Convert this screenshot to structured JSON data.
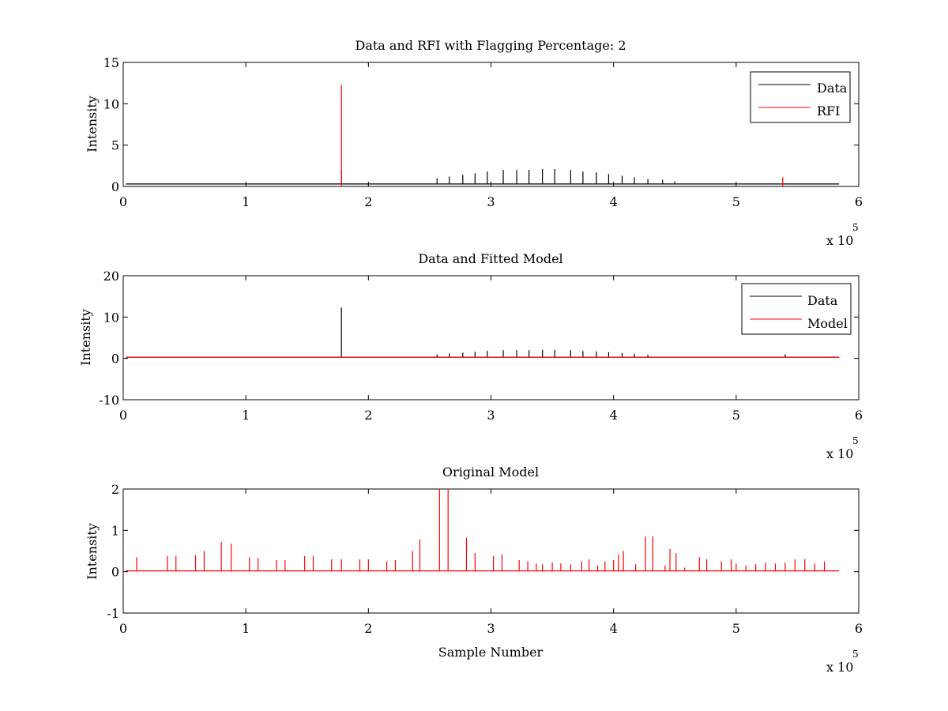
{
  "figure": {
    "background": "#ffffff",
    "axis_color": "#000000"
  },
  "chart_data": [
    {
      "type": "line",
      "title": "Data and RFI with Flagging Percentage: 2",
      "xlabel": "",
      "ylabel": "Intensity",
      "xlim": [
        0,
        600000
      ],
      "ylim": [
        0,
        15
      ],
      "xticks": [
        0,
        100000,
        200000,
        300000,
        400000,
        500000,
        600000
      ],
      "xtick_labels": [
        "0",
        "1",
        "2",
        "3",
        "4",
        "5",
        "6"
      ],
      "yticks": [
        0,
        5,
        10,
        15
      ],
      "ytick_labels": [
        "0",
        "5",
        "10",
        "15"
      ],
      "x_multiplier_label": "x 10",
      "x_multiplier_exponent": "5",
      "legend": {
        "position": "top-right",
        "entries": [
          "Data",
          "RFI"
        ]
      },
      "series": [
        {
          "name": "Data",
          "color": "#000000",
          "baseline": 0.3,
          "spikes": [
            [
              178000,
              2.0
            ],
            [
              256000,
              1.0
            ],
            [
              266000,
              1.2
            ],
            [
              277000,
              1.4
            ],
            [
              287000,
              1.6
            ],
            [
              297000,
              1.8
            ],
            [
              310000,
              2.0
            ],
            [
              321000,
              2.0
            ],
            [
              331000,
              2.0
            ],
            [
              342000,
              2.1
            ],
            [
              352000,
              2.1
            ],
            [
              365000,
              2.0
            ],
            [
              375000,
              1.8
            ],
            [
              386000,
              1.7
            ],
            [
              396000,
              1.5
            ],
            [
              407000,
              1.3
            ],
            [
              417000,
              1.1
            ],
            [
              428000,
              0.9
            ],
            [
              440000,
              0.8
            ],
            [
              450000,
              0.6
            ]
          ]
        },
        {
          "name": "RFI",
          "color": "#ff0000",
          "baseline": null,
          "spikes": [
            [
              178000,
              12.3
            ],
            [
              538000,
              1.1
            ]
          ]
        }
      ]
    },
    {
      "type": "line",
      "title": "Data and Fitted Model",
      "xlabel": "",
      "ylabel": "Intensity",
      "xlim": [
        0,
        600000
      ],
      "ylim": [
        -10,
        20
      ],
      "xticks": [
        0,
        100000,
        200000,
        300000,
        400000,
        500000,
        600000
      ],
      "xtick_labels": [
        "0",
        "1",
        "2",
        "3",
        "4",
        "5",
        "6"
      ],
      "yticks": [
        -10,
        0,
        10,
        20
      ],
      "ytick_labels": [
        "-10",
        "0",
        "10",
        "20"
      ],
      "x_multiplier_label": "x 10",
      "x_multiplier_exponent": "5",
      "legend": {
        "position": "top-right",
        "entries": [
          "Data",
          "Model"
        ]
      },
      "series": [
        {
          "name": "Data",
          "color": "#000000",
          "baseline": 0.3,
          "spikes": [
            [
              178000,
              12.3
            ],
            [
              256000,
              1.0
            ],
            [
              266000,
              1.2
            ],
            [
              277000,
              1.4
            ],
            [
              287000,
              1.6
            ],
            [
              297000,
              1.8
            ],
            [
              310000,
              2.0
            ],
            [
              321000,
              2.0
            ],
            [
              331000,
              2.0
            ],
            [
              342000,
              2.1
            ],
            [
              352000,
              2.1
            ],
            [
              365000,
              2.0
            ],
            [
              375000,
              1.8
            ],
            [
              386000,
              1.7
            ],
            [
              396000,
              1.5
            ],
            [
              407000,
              1.3
            ],
            [
              417000,
              1.1
            ],
            [
              428000,
              0.9
            ],
            [
              540000,
              1.0
            ]
          ]
        },
        {
          "name": "Model",
          "color": "#ff0000",
          "baseline": 0.3,
          "spikes": []
        }
      ]
    },
    {
      "type": "line",
      "title": "Original Model",
      "xlabel": "Sample Number",
      "ylabel": "Intensity",
      "xlim": [
        0,
        600000
      ],
      "ylim": [
        -1,
        2
      ],
      "xticks": [
        0,
        100000,
        200000,
        300000,
        400000,
        500000,
        600000
      ],
      "xtick_labels": [
        "0",
        "1",
        "2",
        "3",
        "4",
        "5",
        "6"
      ],
      "yticks": [
        -1,
        0,
        1,
        2
      ],
      "ytick_labels": [
        "-1",
        "0",
        "1",
        "2"
      ],
      "x_multiplier_label": "x 10",
      "x_multiplier_exponent": "5",
      "legend": null,
      "series": [
        {
          "name": "",
          "color": "#ff0000",
          "baseline": 0.02,
          "spikes": [
            [
              11000,
              0.35
            ],
            [
              36000,
              0.38
            ],
            [
              43000,
              0.38
            ],
            [
              59000,
              0.4
            ],
            [
              66000,
              0.5
            ],
            [
              80000,
              0.72
            ],
            [
              88000,
              0.68
            ],
            [
              103000,
              0.35
            ],
            [
              110000,
              0.33
            ],
            [
              125000,
              0.28
            ],
            [
              132000,
              0.28
            ],
            [
              148000,
              0.38
            ],
            [
              155000,
              0.38
            ],
            [
              170000,
              0.3
            ],
            [
              178000,
              0.3
            ],
            [
              193000,
              0.3
            ],
            [
              200000,
              0.3
            ],
            [
              215000,
              0.25
            ],
            [
              222000,
              0.28
            ],
            [
              236000,
              0.5
            ],
            [
              242000,
              0.78
            ],
            [
              258000,
              2.0
            ],
            [
              265000,
              2.0
            ],
            [
              280000,
              0.82
            ],
            [
              287000,
              0.45
            ],
            [
              302000,
              0.38
            ],
            [
              309000,
              0.42
            ],
            [
              323000,
              0.28
            ],
            [
              330000,
              0.25
            ],
            [
              337000,
              0.2
            ],
            [
              342000,
              0.18
            ],
            [
              350000,
              0.22
            ],
            [
              357000,
              0.2
            ],
            [
              365000,
              0.18
            ],
            [
              374000,
              0.25
            ],
            [
              380000,
              0.3
            ],
            [
              387000,
              0.15
            ],
            [
              393000,
              0.25
            ],
            [
              400000,
              0.28
            ],
            [
              404000,
              0.42
            ],
            [
              408000,
              0.5
            ],
            [
              418000,
              0.18
            ],
            [
              426000,
              0.85
            ],
            [
              432000,
              0.85
            ],
            [
              442000,
              0.15
            ],
            [
              446000,
              0.55
            ],
            [
              451000,
              0.45
            ],
            [
              458000,
              0.1
            ],
            [
              470000,
              0.35
            ],
            [
              476000,
              0.3
            ],
            [
              488000,
              0.25
            ],
            [
              496000,
              0.3
            ],
            [
              500000,
              0.2
            ],
            [
              508000,
              0.15
            ],
            [
              516000,
              0.18
            ],
            [
              524000,
              0.22
            ],
            [
              532000,
              0.2
            ],
            [
              540000,
              0.22
            ],
            [
              548000,
              0.3
            ],
            [
              556000,
              0.3
            ],
            [
              564000,
              0.2
            ],
            [
              572000,
              0.25
            ]
          ]
        }
      ]
    }
  ]
}
